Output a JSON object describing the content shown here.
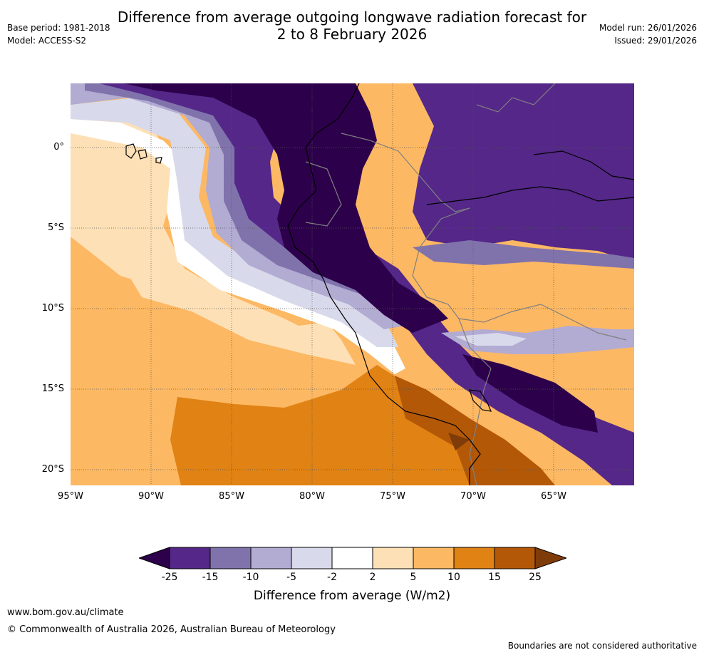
{
  "header": {
    "title_line1": "Difference from average outgoing longwave radiation forecast for",
    "title_line2": "2 to 8 February 2026",
    "base_period": "Base period: 1981-2018",
    "model": "Model: ACCESS-S2",
    "model_run": "Model run: 26/01/2026",
    "issued": "Issued: 29/01/2026"
  },
  "map": {
    "lat_labels": [
      "0°",
      "5°S",
      "10°S",
      "15°S",
      "20°S"
    ],
    "lon_labels": [
      "95°W",
      "90°W",
      "85°W",
      "80°W",
      "75°W",
      "70°W",
      "65°W"
    ],
    "colors": {
      "lt_m25": "#2c004b",
      "m25_m15": "#542788",
      "m15_m10": "#8073ac",
      "m10_m5": "#b2abd2",
      "m5_m2": "#d8daeb",
      "m2_2": "#ffffff",
      "p2_5": "#fee0b6",
      "p5_10": "#fdb863",
      "p10_15": "#e08214",
      "p15_25": "#b35806",
      "gt_25": "#7f3b08",
      "coast": "#000000",
      "border": "#808080",
      "grid": "#555555"
    }
  },
  "colorbar": {
    "labels": [
      "-25",
      "-15",
      "-10",
      "-5",
      "-2",
      "2",
      "5",
      "10",
      "15",
      "25"
    ],
    "title": "Difference from average (W/m2)"
  },
  "footer": {
    "url": "www.bom.gov.au/climate",
    "copyright": "© Commonwealth of Australia 2026, Australian Bureau of Meteorology",
    "disclaimer": "Boundaries are not considered authoritative"
  }
}
